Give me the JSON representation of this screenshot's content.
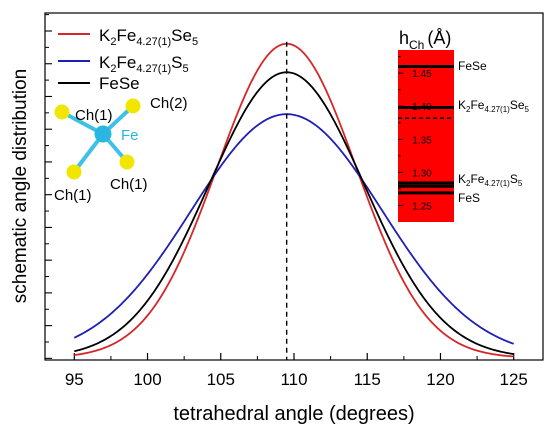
{
  "chart_data": {
    "type": "line",
    "xlabel": "tetrahedral angle (degrees)",
    "ylabel": "schematic angle distribution",
    "xlim": [
      93,
      127
    ],
    "x_ticks": [
      95,
      100,
      105,
      110,
      115,
      120,
      125
    ],
    "x_tick_labels": [
      "95",
      "100",
      "105",
      "110",
      "115",
      "120",
      "125"
    ],
    "ylim": [
      0,
      1.06
    ],
    "y_tick_labels_shown": false,
    "grid": false,
    "legend_position": "top-left",
    "series": [
      {
        "name": "K2Fe4.27(1)Se5",
        "legend": {
          "a": "K",
          "b": "2",
          "c": "Fe",
          "d": "4.27(1)",
          "e": "Se",
          "f": "5"
        },
        "color": "#d62728",
        "center": 109.5,
        "sigma": 4.75,
        "peak": 0.96,
        "baseline": 0.006,
        "x": [
          95,
          100,
          105,
          109.5,
          114,
          119,
          125
        ],
        "y": [
          0.019,
          0.144,
          0.608,
          0.966,
          0.608,
          0.144,
          0.01
        ]
      },
      {
        "name": "K2Fe4.27(1)S5",
        "legend": {
          "a": "K",
          "b": "2",
          "c": "Fe",
          "d": "4.27(1)",
          "e": "S",
          "f": "5"
        },
        "color": "#1f1fb4",
        "center": 109.5,
        "sigma": 6.5,
        "peak": 0.745,
        "baseline": 0.006,
        "x": [
          95,
          100,
          105,
          109.5,
          114,
          119,
          125
        ],
        "y": [
          0.065,
          0.26,
          0.58,
          0.751,
          0.58,
          0.26,
          0.04
        ]
      },
      {
        "name": "FeSe",
        "legend": {
          "text": "FeSe"
        },
        "color": "#000000",
        "center": 109.5,
        "sigma": 5.3,
        "peak": 0.873,
        "baseline": 0.006,
        "x": [
          95,
          100,
          105,
          109.5,
          114,
          119,
          125
        ],
        "y": [
          0.035,
          0.195,
          0.62,
          0.879,
          0.62,
          0.195,
          0.02
        ]
      }
    ],
    "vline": {
      "x": 109.5,
      "style": "dashed",
      "color": "#000000"
    },
    "inset": {
      "title_main": "h",
      "title_sub": "Ch",
      "title_unit": "(Å)",
      "fill_color": "#ff0000",
      "ylim": [
        1.225,
        1.485
      ],
      "ticks": [
        1.25,
        1.3,
        1.35,
        1.4,
        1.45
      ],
      "tick_labels": [
        "1.25",
        "1.30",
        "1.35",
        "1.40",
        "1.45"
      ],
      "levels": [
        {
          "value": 1.46,
          "style": "solid"
        },
        {
          "value": 1.398,
          "style": "solid"
        },
        {
          "value": 1.382,
          "style": "dashed"
        },
        {
          "value": 1.284,
          "style": "solid"
        },
        {
          "value": 1.279,
          "style": "solid"
        },
        {
          "value": 1.269,
          "style": "solid"
        }
      ],
      "labels": {
        "fese": "FeSe",
        "se5": {
          "a": "K",
          "b": "2",
          "c": "Fe",
          "d": "4.27(1)",
          "e": "Se",
          "f": "5"
        },
        "s5": {
          "a": "K",
          "b": "2",
          "c": "Fe",
          "d": "4.27(1)",
          "e": "S",
          "f": "5"
        },
        "fes": "FeS"
      }
    },
    "molecule": {
      "center_label": "Fe",
      "center_color": "#29b6e0",
      "ligand_color": "#f2e600",
      "bond_color": "#3fc0e6",
      "ligand_labels": [
        "Ch(1)",
        "Ch(2)",
        "Ch(1)",
        "Ch(1)"
      ]
    }
  }
}
